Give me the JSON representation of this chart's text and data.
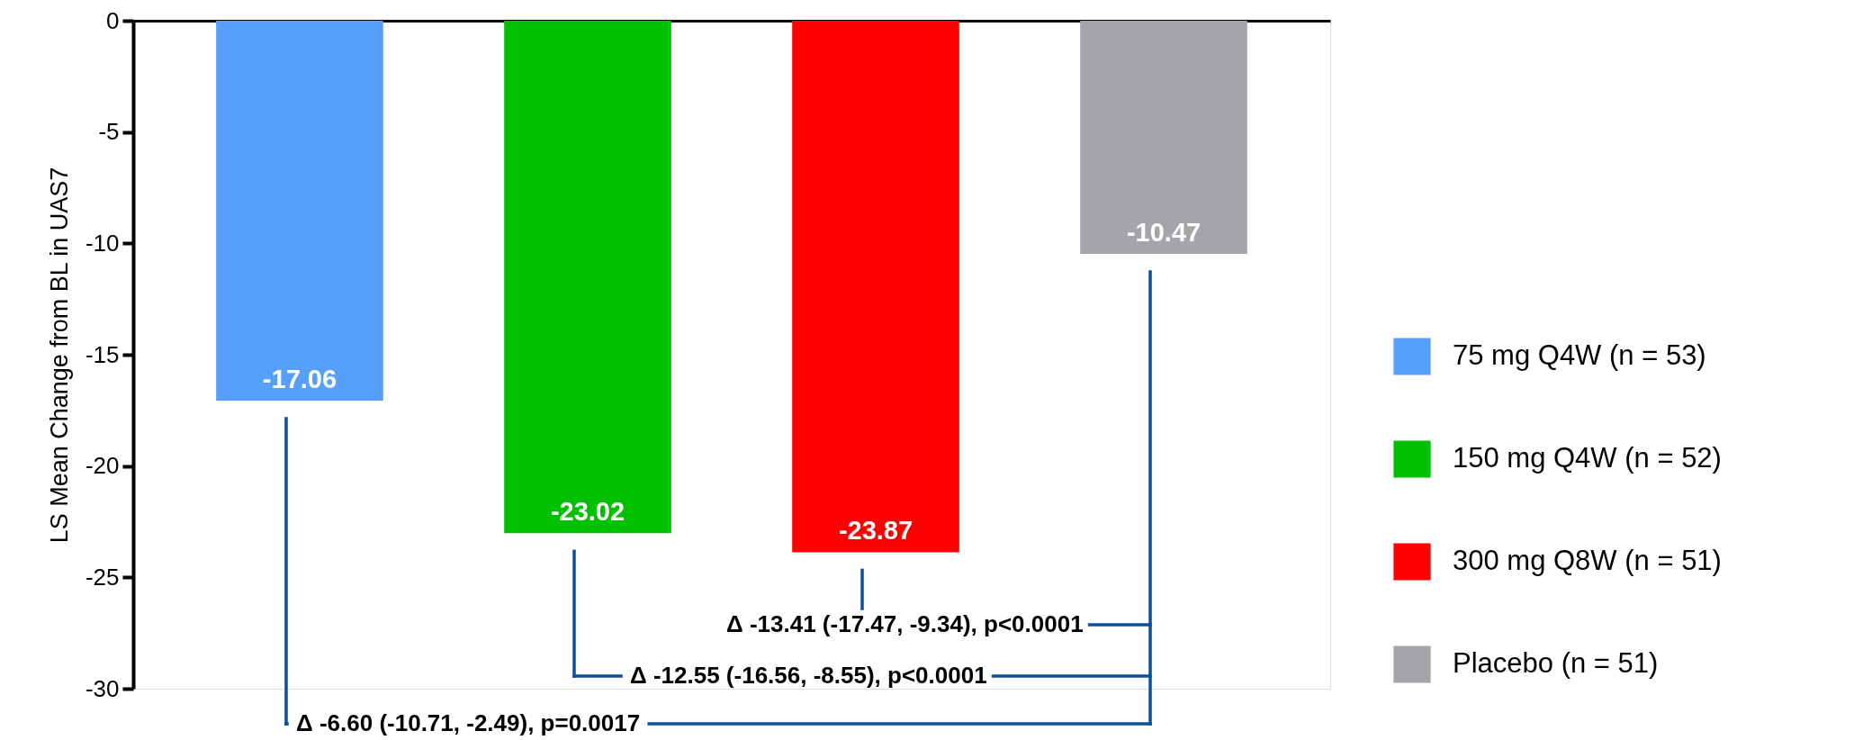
{
  "chart_data": {
    "type": "bar",
    "ylabel": "LS Mean Change from BL in UAS7",
    "categories": [
      null,
      null,
      null,
      null
    ],
    "series": [
      {
        "name": "75 mg Q4W (n = 53)",
        "color": "#56a0fb",
        "values": [
          -17.06,
          null,
          null,
          null
        ]
      },
      {
        "name": "150 mg Q4W (n = 52)",
        "color": "#00c000",
        "values": [
          null,
          -23.02,
          null,
          null
        ]
      },
      {
        "name": "300 mg Q8W (n = 51)",
        "color": "#ff0000",
        "values": [
          null,
          null,
          -23.87,
          null
        ]
      },
      {
        "name": "Placebo (n = 51)",
        "color": "#a5a4a9",
        "values": [
          null,
          null,
          null,
          -10.47
        ]
      }
    ],
    "ylim": [
      -30,
      0
    ],
    "yticks": [
      0,
      -5,
      -10,
      -15,
      -20,
      -25,
      -30
    ],
    "data_labels": true,
    "legend": "right",
    "grid": false,
    "tick_labels": "y",
    "annotations": [
      "Δ -13.41 (-17.47, -9.34), p<0.0001",
      "Δ -12.55 (-16.56, -8.55), p<0.0001",
      "Δ -6.60 (-10.71, -2.49), p=0.0017"
    ]
  }
}
